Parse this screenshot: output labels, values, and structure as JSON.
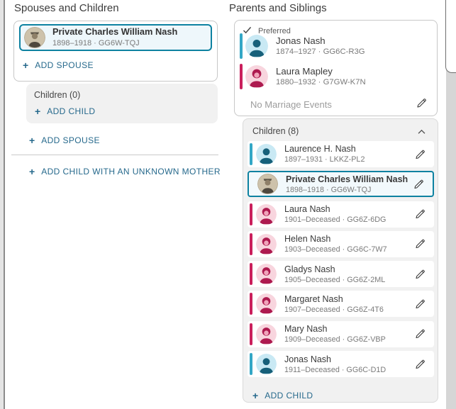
{
  "colors": {
    "link": "#26698c",
    "selected_border": "#0e82a1",
    "selected_bg": "#eef7fb",
    "male_bar": "#33a7c6",
    "male_avatar_bg": "#c9e9f4",
    "male_avatar_fg": "#17607a",
    "female_bar": "#ca1f5c",
    "female_avatar_bg": "#f8d5de",
    "female_avatar_fg": "#ad1a4f",
    "female_avatar_face": "#f0a4ba",
    "card_border": "#c7c7c7",
    "panel_bg": "#f1f1f1",
    "panel_border": "#d9d9d9",
    "text_primary": "#3a3a3a",
    "text_secondary": "#7a7a7a",
    "muted_text": "#9c9c9c"
  },
  "icons": {
    "add_plus": "+",
    "preferred_check": "check-icon",
    "children_collapse": "chevron-up-icon",
    "edit": "pencil-icon"
  },
  "left_panel": {
    "title": "Spouses and Children",
    "selected_person": {
      "name": "Private Charles William Nash",
      "detail": "1898–1918 · GG6W-TQJ"
    },
    "add_spouse_label": "ADD SPOUSE",
    "children_header": "Children (0)",
    "add_child_label": "ADD CHILD",
    "add_child_unknown_mother_label": "ADD CHILD WITH AN UNKNOWN MOTHER"
  },
  "right_panel": {
    "title": "Parents and Siblings",
    "preferred_label": "Preferred",
    "parents": [
      {
        "name": "Jonas Nash",
        "detail": "1874–1927 · GG6C-R3G",
        "sex": "male"
      },
      {
        "name": "Laura Mapley",
        "detail": "1880–1932 · G7GW-K7N",
        "sex": "female"
      }
    ],
    "no_marriage_label": "No Marriage Events",
    "children_header": "Children (8)",
    "children": [
      {
        "name": "Laurence H. Nash",
        "detail": "1897–1931 · LKKZ-PL2",
        "sex": "male"
      },
      {
        "name": "Private Charles William Nash",
        "detail": "1898–1918 · GG6W-TQJ",
        "sex": "male",
        "selected": true,
        "photo": true
      },
      {
        "name": "Laura Nash",
        "detail": "1901–Deceased · GG6Z-6DG",
        "sex": "female"
      },
      {
        "name": "Helen Nash",
        "detail": "1903–Deceased · GG6C-7W7",
        "sex": "female"
      },
      {
        "name": "Gladys Nash",
        "detail": "1905–Deceased · GG6Z-2ML",
        "sex": "female"
      },
      {
        "name": "Margaret Nash",
        "detail": "1907–Deceased · GG6Z-4T6",
        "sex": "female"
      },
      {
        "name": "Mary Nash",
        "detail": "1909–Deceased · GG6Z-VBP",
        "sex": "female"
      },
      {
        "name": "Jonas Nash",
        "detail": "1911–Deceased · GG6C-D1D",
        "sex": "male"
      }
    ],
    "add_child_label": "ADD CHILD"
  }
}
